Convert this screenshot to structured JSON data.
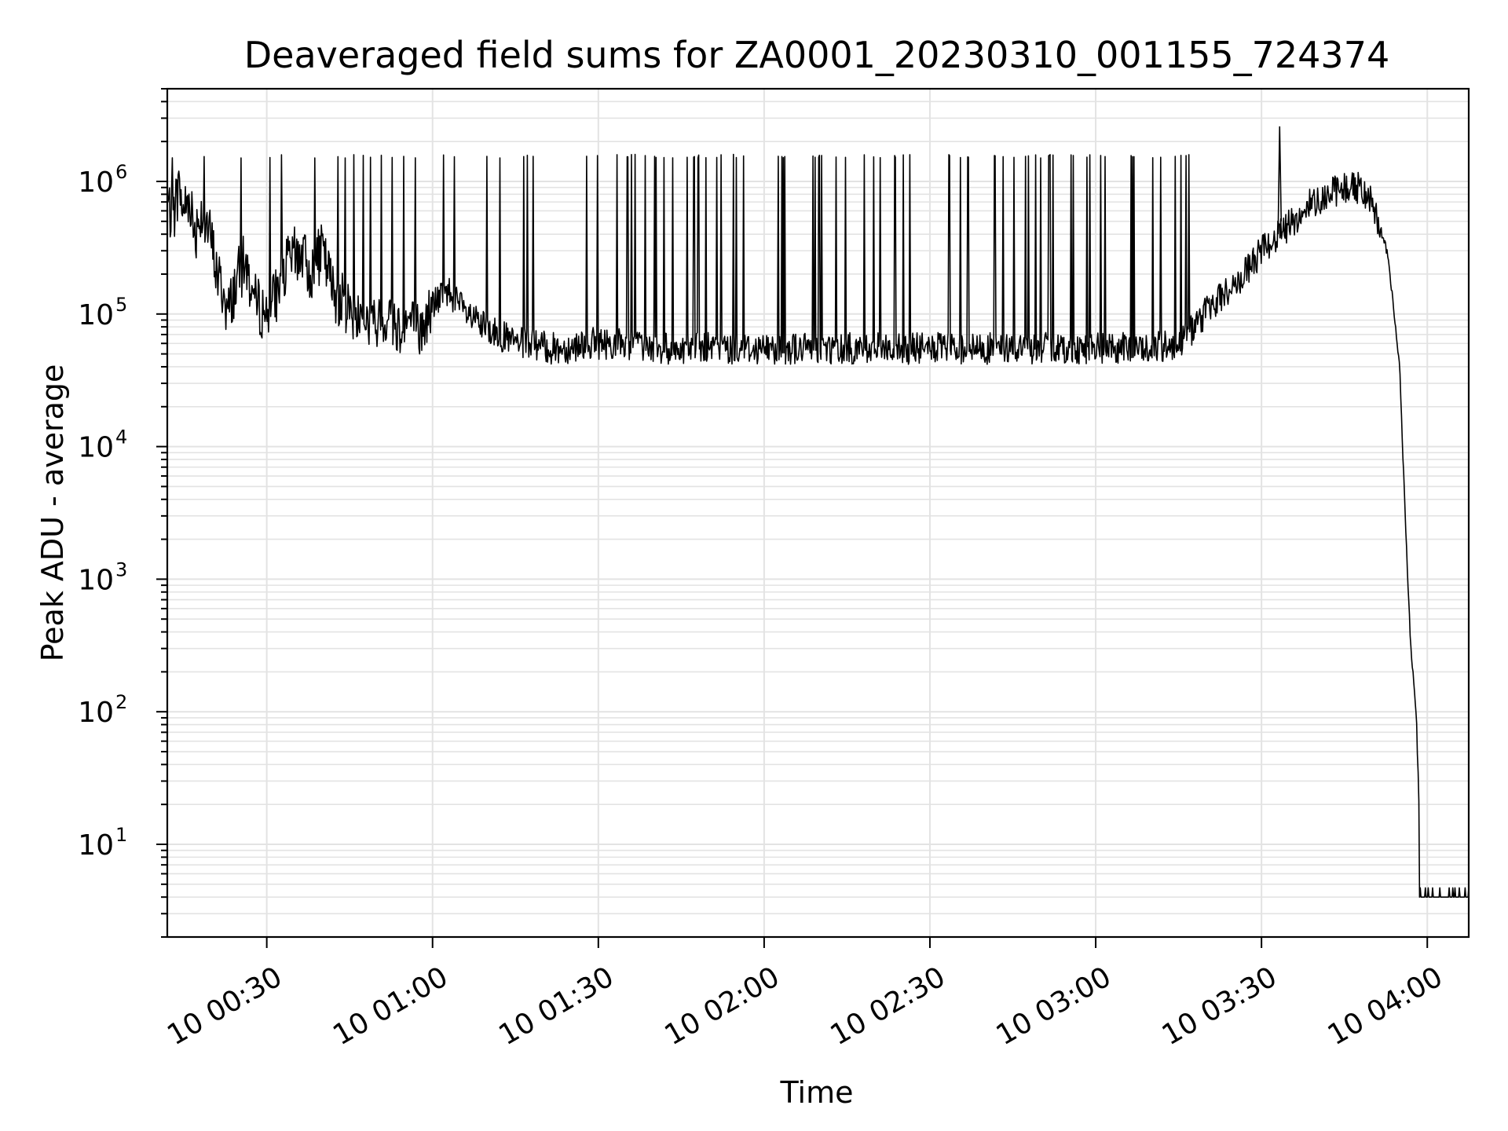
{
  "chart_data": {
    "type": "line",
    "title": "Deaveraged field sums for ZA0001_20230310_001155_724374",
    "xlabel": "Time",
    "ylabel": "Peak ADU - average",
    "y_scale": "log",
    "ylim": [
      2,
      5000000
    ],
    "xlim": [
      "2023-03-10 00:12:00",
      "2023-03-10 04:07:30"
    ],
    "grid": {
      "major": true,
      "minor_y": true
    },
    "line_color": "#000000",
    "grid_color": "#e3e3e3",
    "x_ticks": [
      {
        "t": "2023-03-10 00:30:00",
        "label": "10 00:30"
      },
      {
        "t": "2023-03-10 01:00:00",
        "label": "10 01:00"
      },
      {
        "t": "2023-03-10 01:30:00",
        "label": "10 01:30"
      },
      {
        "t": "2023-03-10 02:00:00",
        "label": "10 02:00"
      },
      {
        "t": "2023-03-10 02:30:00",
        "label": "10 02:30"
      },
      {
        "t": "2023-03-10 03:00:00",
        "label": "10 03:00"
      },
      {
        "t": "2023-03-10 03:30:00",
        "label": "10 03:30"
      },
      {
        "t": "2023-03-10 04:00:00",
        "label": "10 04:00"
      }
    ],
    "y_ticks": [
      {
        "value": 10,
        "base": "10",
        "exp": "1"
      },
      {
        "value": 100,
        "base": "10",
        "exp": "2"
      },
      {
        "value": 1000,
        "base": "10",
        "exp": "3"
      },
      {
        "value": 10000,
        "base": "10",
        "exp": "4"
      },
      {
        "value": 100000,
        "base": "10",
        "exp": "5"
      },
      {
        "value": 1000000,
        "base": "10",
        "exp": "6"
      }
    ],
    "series": [
      {
        "x": [
          "2023-03-10 00:12:00",
          "2023-03-10 00:13:00",
          "2023-03-10 00:14:00",
          "2023-03-10 00:15:00",
          "2023-03-10 00:16:00",
          "2023-03-10 00:17:00",
          "2023-03-10 00:18:00",
          "2023-03-10 00:19:00",
          "2023-03-10 00:20:00",
          "2023-03-10 00:21:00",
          "2023-03-10 00:22:00",
          "2023-03-10 00:23:00",
          "2023-03-10 00:24:00",
          "2023-03-10 00:25:00",
          "2023-03-10 00:26:00",
          "2023-03-10 00:28:00",
          "2023-03-10 00:30:00",
          "2023-03-10 00:32:00",
          "2023-03-10 00:34:00",
          "2023-03-10 00:36:00",
          "2023-03-10 00:38:00",
          "2023-03-10 00:40:00",
          "2023-03-10 00:42:00",
          "2023-03-10 00:44:00",
          "2023-03-10 00:46:00",
          "2023-03-10 00:48:00",
          "2023-03-10 00:50:00",
          "2023-03-10 00:52:00",
          "2023-03-10 00:54:00",
          "2023-03-10 00:56:00",
          "2023-03-10 00:58:00",
          "2023-03-10 01:00:00",
          "2023-03-10 01:03:00",
          "2023-03-10 01:06:00",
          "2023-03-10 01:09:00",
          "2023-03-10 01:12:00",
          "2023-03-10 01:15:00",
          "2023-03-10 01:18:00",
          "2023-03-10 01:21:00",
          "2023-03-10 01:24:00",
          "2023-03-10 01:27:00",
          "2023-03-10 01:30:00",
          "2023-03-10 01:35:00",
          "2023-03-10 01:40:00",
          "2023-03-10 01:45:00",
          "2023-03-10 01:50:00",
          "2023-03-10 01:55:00",
          "2023-03-10 02:00:00",
          "2023-03-10 02:05:00",
          "2023-03-10 02:10:00",
          "2023-03-10 02:15:00",
          "2023-03-10 02:20:00",
          "2023-03-10 02:25:00",
          "2023-03-10 02:30:00",
          "2023-03-10 02:35:00",
          "2023-03-10 02:40:00",
          "2023-03-10 02:45:00",
          "2023-03-10 02:50:00",
          "2023-03-10 02:55:00",
          "2023-03-10 03:00:00",
          "2023-03-10 03:05:00",
          "2023-03-10 03:10:00",
          "2023-03-10 03:15:00",
          "2023-03-10 03:18:00",
          "2023-03-10 03:21:00",
          "2023-03-10 03:24:00",
          "2023-03-10 03:27:00",
          "2023-03-10 03:30:00",
          "2023-03-10 03:33:00",
          "2023-03-10 03:36:00",
          "2023-03-10 03:39:00",
          "2023-03-10 03:42:00",
          "2023-03-10 03:45:00",
          "2023-03-10 03:48:00",
          "2023-03-10 03:50:00",
          "2023-03-10 03:52:00",
          "2023-03-10 03:53:00",
          "2023-03-10 03:54:00",
          "2023-03-10 03:55:00",
          "2023-03-10 03:56:00",
          "2023-03-10 03:57:00",
          "2023-03-10 03:58:00",
          "2023-03-10 03:59:00",
          "2023-03-10 04:00:00",
          "2023-03-10 04:02:00",
          "2023-03-10 04:04:00",
          "2023-03-10 04:06:00",
          "2023-03-10 04:07:30"
        ],
        "y": [
          700000,
          500000,
          900000,
          600000,
          800000,
          400000,
          600000,
          500000,
          350000,
          200000,
          150000,
          100000,
          150000,
          200000,
          250000,
          120000,
          100000,
          150000,
          250000,
          300000,
          200000,
          300000,
          150000,
          120000,
          100000,
          90000,
          80000,
          100000,
          80000,
          90000,
          70000,
          120000,
          150000,
          100000,
          80000,
          70000,
          60000,
          60000,
          55000,
          55000,
          60000,
          60000,
          60000,
          55000,
          55000,
          55000,
          55000,
          55000,
          55000,
          55000,
          55000,
          55000,
          55000,
          55000,
          55000,
          55000,
          55000,
          55000,
          55000,
          55000,
          55000,
          55000,
          60000,
          80000,
          120000,
          150000,
          200000,
          300000,
          400000,
          500000,
          700000,
          800000,
          900000,
          900000,
          700000,
          400000,
          250000,
          100000,
          40000,
          3000,
          300,
          100,
          4,
          4,
          4,
          4,
          4,
          4
        ]
      }
    ],
    "spike_tops": [
      1500000,
      1600000
    ],
    "peak_max": 2600000
  }
}
